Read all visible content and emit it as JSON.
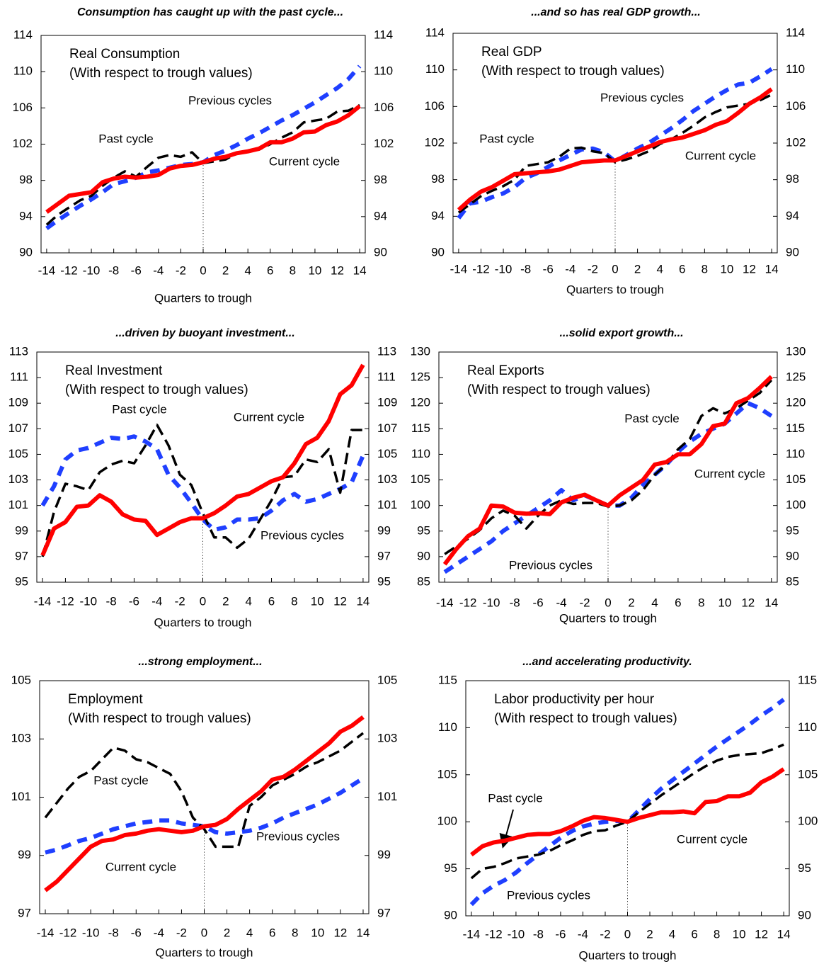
{
  "chart_data": [
    {
      "type": "line",
      "title": "Consumption has caught up with the past cycle...",
      "subtitle": [
        "Real Consumption",
        "(With respect to trough values)"
      ],
      "xlabel": "Quarters to trough",
      "x": [
        -14,
        -13,
        -12,
        -11,
        -10,
        -9,
        -8,
        -7,
        -6,
        -5,
        -4,
        -3,
        -2,
        -1,
        0,
        1,
        2,
        3,
        4,
        5,
        6,
        7,
        8,
        9,
        10,
        11,
        12,
        13,
        14
      ],
      "xlim": [
        -14.5,
        14.5
      ],
      "xticks": [
        -14,
        -12,
        -10,
        -8,
        -6,
        -4,
        -2,
        0,
        2,
        4,
        6,
        8,
        10,
        12,
        14
      ],
      "ylim": [
        90,
        114
      ],
      "yticks": [
        90,
        94,
        98,
        102,
        106,
        110,
        114
      ],
      "series": [
        {
          "name": "Previous cycles",
          "color": "#1f3fff",
          "line_style": "dashed",
          "values": [
            92.7,
            93.6,
            94.4,
            95.2,
            95.9,
            96.7,
            97.6,
            97.9,
            98.3,
            98.9,
            99.1,
            99.4,
            99.7,
            99.8,
            100,
            100.8,
            101.3,
            101.9,
            102.6,
            103.2,
            103.9,
            104.6,
            105.2,
            105.9,
            106.6,
            107.4,
            108.2,
            109.2,
            110.6
          ]
        },
        {
          "name": "Past cycle",
          "color": "#000000",
          "line_style": "dashed",
          "values": [
            93.1,
            94.2,
            95.0,
            95.8,
            96.3,
            97.4,
            98.3,
            99.0,
            98.4,
            99.5,
            100.5,
            100.8,
            100.6,
            101.1,
            99.9,
            100.1,
            100.3,
            101.0,
            101.2,
            101.4,
            102.0,
            102.7,
            103.3,
            104.4,
            104.6,
            104.8,
            105.6,
            105.7,
            106.3
          ]
        },
        {
          "name": "Current cycle",
          "color": "#ff0000",
          "line_style": "solid",
          "values": [
            94.5,
            95.4,
            96.3,
            96.5,
            96.7,
            97.8,
            98.2,
            98.4,
            98.3,
            98.4,
            98.6,
            99.3,
            99.6,
            99.7,
            100,
            100.4,
            100.6,
            101,
            101.2,
            101.5,
            102.2,
            102.2,
            102.6,
            103.3,
            103.4,
            104.1,
            104.5,
            105.2,
            106.2
          ]
        }
      ]
    },
    {
      "type": "line",
      "title": "...and so has real GDP growth...",
      "subtitle": [
        "Real GDP",
        "(With respect to trough values)"
      ],
      "xlabel": "Quarters to trough",
      "x": [
        -14,
        -13,
        -12,
        -11,
        -10,
        -9,
        -8,
        -7,
        -6,
        -5,
        -4,
        -3,
        -2,
        -1,
        0,
        1,
        2,
        3,
        4,
        5,
        6,
        7,
        8,
        9,
        10,
        11,
        12,
        13,
        14
      ],
      "xlim": [
        -14.5,
        14.5
      ],
      "xticks": [
        -14,
        -12,
        -10,
        -8,
        -6,
        -4,
        -2,
        0,
        2,
        4,
        6,
        8,
        10,
        12,
        14
      ],
      "ylim": [
        90,
        114
      ],
      "yticks": [
        90,
        94,
        98,
        102,
        106,
        110,
        114
      ],
      "series": [
        {
          "name": "Previous cycles",
          "color": "#1f3fff",
          "line_style": "dashed",
          "values": [
            93.8,
            95.4,
            95.6,
            96.1,
            96.5,
            97.2,
            98.2,
            98.7,
            99.4,
            100.1,
            100.7,
            101.3,
            101.4,
            101.0,
            100.0,
            100.7,
            101.4,
            102.0,
            102.8,
            103.6,
            104.5,
            105.5,
            106.3,
            107.1,
            107.8,
            108.4,
            108.6,
            109.3,
            110.1
          ]
        },
        {
          "name": "Past cycle",
          "color": "#000000",
          "line_style": "dashed",
          "values": [
            94.4,
            95.3,
            96.2,
            96.8,
            97.3,
            98.0,
            99.5,
            99.7,
            99.9,
            100.5,
            101.4,
            101.5,
            101.1,
            100.9,
            99.9,
            100.2,
            100.6,
            101.1,
            101.9,
            102.4,
            103.1,
            103.9,
            104.8,
            105.4,
            105.9,
            106.1,
            106.3,
            106.7,
            107.3
          ]
        },
        {
          "name": "Current cycle",
          "color": "#ff0000",
          "line_style": "solid",
          "values": [
            94.7,
            95.8,
            96.7,
            97.2,
            97.9,
            98.6,
            98.7,
            98.8,
            98.9,
            99.1,
            99.5,
            99.9,
            100,
            100.1,
            100.1,
            100.6,
            101.1,
            101.6,
            102.1,
            102.4,
            102.6,
            103,
            103.4,
            104,
            104.4,
            105.3,
            106.3,
            107,
            107.9
          ]
        }
      ]
    },
    {
      "type": "line",
      "title": "...driven by buoyant investment...",
      "subtitle": [
        "Real Investment",
        "(With respect to trough values)"
      ],
      "xlabel": "Quarters to trough",
      "x": [
        -14,
        -13,
        -12,
        -11,
        -10,
        -9,
        -8,
        -7,
        -6,
        -5,
        -4,
        -3,
        -2,
        -1,
        0,
        1,
        2,
        3,
        4,
        5,
        6,
        7,
        8,
        9,
        10,
        11,
        12,
        13,
        14
      ],
      "xlim": [
        -14.5,
        14.5
      ],
      "xticks": [
        -14,
        -12,
        -10,
        -8,
        -6,
        -4,
        -2,
        0,
        2,
        4,
        6,
        8,
        10,
        12,
        14
      ],
      "ylim": [
        95,
        113
      ],
      "yticks": [
        95,
        97,
        99,
        101,
        103,
        105,
        107,
        109,
        111,
        113
      ],
      "series": [
        {
          "name": "Previous cycles",
          "color": "#1f3fff",
          "line_style": "dashed",
          "values": [
            101.0,
            102.5,
            104.6,
            105.3,
            105.5,
            105.9,
            106.3,
            106.2,
            106.4,
            106.0,
            105.4,
            103.4,
            102.4,
            101.2,
            99.9,
            99.1,
            99.3,
            99.9,
            99.9,
            100.0,
            100.6,
            101.4,
            101.9,
            101.3,
            101.5,
            101.9,
            102.3,
            102.8,
            104.9
          ]
        },
        {
          "name": "Past cycle",
          "color": "#000000",
          "line_style": "dashed",
          "values": [
            97.0,
            100.5,
            102.7,
            102.5,
            102.2,
            103.6,
            104.2,
            104.5,
            104.3,
            105.7,
            107.3,
            105.7,
            103.4,
            102.6,
            100.4,
            98.5,
            98.5,
            97.7,
            98.4,
            99.9,
            101.4,
            103.2,
            103.3,
            104.6,
            104.4,
            105.4,
            102.0,
            106.9,
            106.9
          ]
        },
        {
          "name": "Current cycle",
          "color": "#ff0000",
          "line_style": "solid",
          "values": [
            97.1,
            99.2,
            99.7,
            100.9,
            101.0,
            101.8,
            101.3,
            100.3,
            99.9,
            99.8,
            98.7,
            99.2,
            99.7,
            100,
            100,
            100.4,
            101.0,
            101.7,
            101.9,
            102.4,
            102.9,
            103.2,
            104.3,
            105.8,
            106.3,
            107.6,
            109.7,
            110.4,
            112
          ]
        }
      ]
    },
    {
      "type": "line",
      "title": "...solid export growth...",
      "subtitle": [
        "Real Exports",
        "(With respect to trough values)"
      ],
      "xlabel": "Quarters to trough",
      "x": [
        -14,
        -13,
        -12,
        -11,
        -10,
        -9,
        -8,
        -7,
        -6,
        -5,
        -4,
        -3,
        -2,
        -1,
        0,
        1,
        2,
        3,
        4,
        5,
        6,
        7,
        8,
        9,
        10,
        11,
        12,
        13,
        14
      ],
      "xlim": [
        -14.5,
        14.5
      ],
      "xticks": [
        -14,
        -12,
        -10,
        -8,
        -6,
        -4,
        -2,
        0,
        2,
        4,
        6,
        8,
        10,
        12,
        14
      ],
      "ylim": [
        85,
        130
      ],
      "yticks": [
        85,
        90,
        95,
        100,
        105,
        110,
        115,
        120,
        125,
        130
      ],
      "series": [
        {
          "name": "Previous cycles",
          "color": "#1f3fff",
          "line_style": "dashed",
          "values": [
            87,
            88.5,
            90,
            91.5,
            93,
            95,
            96.5,
            98,
            99.5,
            101,
            103,
            101,
            102,
            101,
            100,
            100,
            101.5,
            104,
            106,
            108,
            110.5,
            112.5,
            114,
            115,
            116,
            118,
            120,
            119,
            117.5
          ]
        },
        {
          "name": "Past cycle",
          "color": "#000000",
          "line_style": "dashed",
          "values": [
            90.5,
            92,
            93.5,
            95.2,
            97.5,
            99,
            98,
            95.5,
            98,
            100,
            101,
            100.3,
            100.5,
            100.5,
            99.8,
            100,
            101,
            103,
            106,
            108,
            111,
            113,
            117.5,
            119,
            118,
            119,
            120.5,
            122,
            124.5
          ]
        },
        {
          "name": "Current cycle",
          "color": "#ff0000",
          "line_style": "solid",
          "values": [
            88.5,
            91.5,
            94,
            95.5,
            100,
            99.8,
            98.6,
            98.4,
            98.5,
            98.3,
            100.6,
            101.5,
            102.1,
            101,
            100,
            102,
            103.5,
            105,
            108,
            108.5,
            110,
            110,
            112,
            115.5,
            116,
            120,
            121,
            123,
            125.2
          ]
        }
      ]
    },
    {
      "type": "line",
      "title": "...strong employment...",
      "subtitle": [
        "Employment",
        "(With respect to trough values)"
      ],
      "xlabel": "Quarters to trough",
      "x": [
        -14,
        -13,
        -12,
        -11,
        -10,
        -9,
        -8,
        -7,
        -6,
        -5,
        -4,
        -3,
        -2,
        -1,
        0,
        1,
        2,
        3,
        4,
        5,
        6,
        7,
        8,
        9,
        10,
        11,
        12,
        13,
        14
      ],
      "xlim": [
        -14.5,
        14.5
      ],
      "xticks": [
        -14,
        -12,
        -10,
        -8,
        -6,
        -4,
        -2,
        0,
        2,
        4,
        6,
        8,
        10,
        12,
        14
      ],
      "ylim": [
        97,
        105
      ],
      "yticks": [
        97,
        99,
        101,
        103,
        105
      ],
      "series": [
        {
          "name": "Previous cycles",
          "color": "#1f3fff",
          "line_style": "dashed",
          "values": [
            99.1,
            99.2,
            99.35,
            99.5,
            99.6,
            99.75,
            99.9,
            100.0,
            100.1,
            100.15,
            100.2,
            100.2,
            100.1,
            100.05,
            100.0,
            99.8,
            99.75,
            99.8,
            99.85,
            99.95,
            100.1,
            100.3,
            100.45,
            100.6,
            100.75,
            100.95,
            101.15,
            101.4,
            101.65
          ]
        },
        {
          "name": "Past cycle",
          "color": "#000000",
          "line_style": "dashed",
          "values": [
            100.3,
            100.8,
            101.3,
            101.7,
            101.9,
            102.3,
            102.7,
            102.6,
            102.3,
            102.2,
            102.0,
            101.8,
            101.2,
            100.3,
            99.9,
            99.3,
            99.3,
            99.3,
            100.7,
            101.0,
            101.4,
            101.6,
            101.8,
            102.05,
            102.2,
            102.4,
            102.6,
            102.9,
            103.2
          ]
        },
        {
          "name": "Current cycle",
          "color": "#ff0000",
          "line_style": "solid",
          "values": [
            97.8,
            98.1,
            98.5,
            98.9,
            99.3,
            99.5,
            99.55,
            99.7,
            99.75,
            99.85,
            99.9,
            99.85,
            99.8,
            99.85,
            100,
            100.05,
            100.25,
            100.6,
            100.9,
            101.2,
            101.6,
            101.7,
            101.95,
            102.25,
            102.55,
            102.85,
            103.25,
            103.45,
            103.75
          ]
        }
      ]
    },
    {
      "type": "line",
      "title": "...and accelerating productivity.",
      "subtitle": [
        "Labor productivity per hour",
        "(With respect to trough values)"
      ],
      "xlabel": "Quarters to trough",
      "x": [
        -14,
        -13,
        -12,
        -11,
        -10,
        -9,
        -8,
        -7,
        -6,
        -5,
        -4,
        -3,
        -2,
        -1,
        0,
        1,
        2,
        3,
        4,
        5,
        6,
        7,
        8,
        9,
        10,
        11,
        12,
        13,
        14
      ],
      "xlim": [
        -14.5,
        14.5
      ],
      "xticks": [
        -14,
        -12,
        -10,
        -8,
        -6,
        -4,
        -2,
        0,
        2,
        4,
        6,
        8,
        10,
        12,
        14
      ],
      "ylim": [
        90,
        115
      ],
      "yticks": [
        90,
        95,
        100,
        105,
        110,
        115
      ],
      "series": [
        {
          "name": "Previous cycles",
          "color": "#1f3fff",
          "line_style": "dashed",
          "values": [
            91.2,
            92.4,
            93.2,
            93.8,
            94.6,
            95.6,
            96.5,
            97.4,
            98.3,
            99,
            99.5,
            99.8,
            100,
            100.1,
            100,
            101.2,
            102.4,
            103.5,
            104.4,
            105.3,
            106.2,
            107.1,
            108,
            108.8,
            109.6,
            110.4,
            111.3,
            112.1,
            113
          ]
        },
        {
          "name": "Past cycle",
          "color": "#000000",
          "line_style": "dashed",
          "values": [
            94,
            95,
            95.2,
            95.6,
            96.1,
            96.3,
            96.5,
            96.9,
            97.5,
            98,
            98.6,
            99,
            99.1,
            99.6,
            100,
            101,
            101.9,
            102.8,
            103.6,
            104.4,
            105.2,
            105.9,
            106.5,
            106.9,
            107.1,
            107.2,
            107.3,
            107.7,
            108.2
          ]
        },
        {
          "name": "Current cycle",
          "color": "#ff0000",
          "line_style": "solid",
          "values": [
            96.5,
            97.4,
            97.8,
            98.0,
            98.3,
            98.6,
            98.7,
            98.7,
            99.0,
            99.5,
            100.1,
            100.5,
            100.4,
            100.2,
            100,
            100.4,
            100.7,
            101,
            101,
            101.1,
            100.9,
            102.1,
            102.2,
            102.7,
            102.7,
            103.1,
            104.2,
            104.8,
            105.6
          ]
        }
      ]
    }
  ]
}
